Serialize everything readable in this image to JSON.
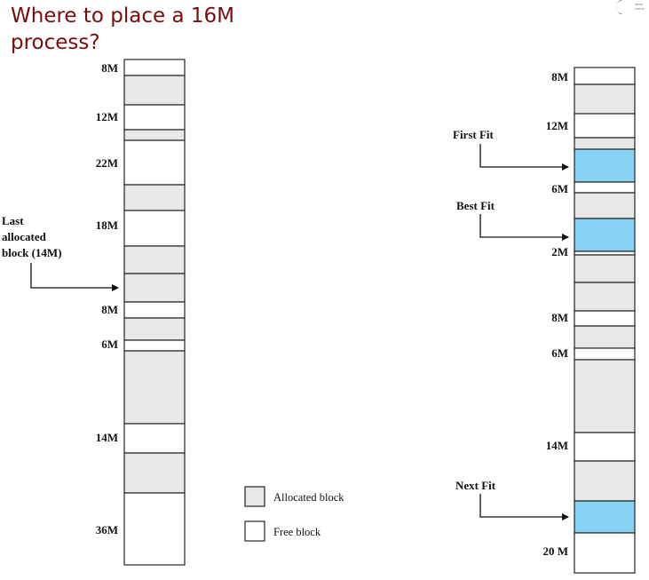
{
  "title": "Where to place a 16M process?",
  "colors": {
    "title": "#7a0c0c",
    "allocated": "#e8e8e8",
    "free": "#ffffff",
    "placed": "#87d3f4",
    "border": "#222222"
  },
  "logo": {
    "lines": [
      "SINGI",
      "UNIVE"
    ]
  },
  "left_memory": {
    "labels": {
      "b1": "8M",
      "b3": "12M",
      "b5": "22M",
      "b7": "18M",
      "b10": "8M",
      "b12": "6M",
      "b14": "14M",
      "b16": "36M"
    }
  },
  "right_memory": {
    "labels": {
      "b1": "8M",
      "b3": "12M",
      "b6": "6M",
      "b9": "2M",
      "b12": "8M",
      "b14": "6M",
      "b16": "14M",
      "b19": "20 M"
    }
  },
  "annotations": {
    "last_allocated": [
      "Last",
      "allocated",
      "block (14M)"
    ],
    "first_fit": "First Fit",
    "best_fit": "Best Fit",
    "next_fit": "Next Fit"
  },
  "legend": {
    "allocated": "Allocated block",
    "free": "Free block"
  }
}
